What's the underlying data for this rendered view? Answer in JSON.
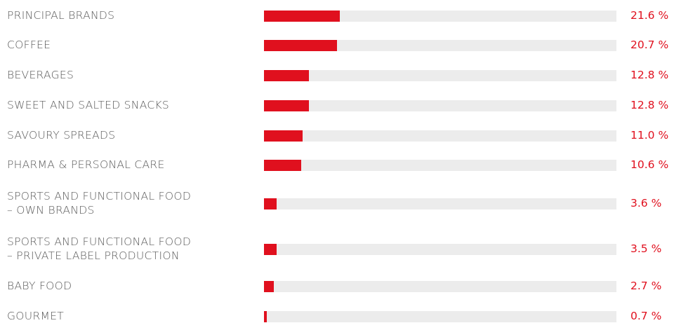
{
  "colors": {
    "accent": "#e0101e",
    "track": "#ececec",
    "label": "#5a5a5a"
  },
  "chart_data": {
    "type": "bar",
    "orientation": "horizontal",
    "xlim": [
      0,
      100
    ],
    "value_suffix": " %",
    "categories": [
      [
        "PRINCIPAL BRANDS"
      ],
      [
        "COFFEE"
      ],
      [
        "BEVERAGES"
      ],
      [
        "SWEET AND SALTED SNACKS"
      ],
      [
        "SAVOURY SPREADS"
      ],
      [
        "PHARMA & PERSONAL CARE"
      ],
      [
        "SPORTS AND FUNCTIONAL FOOD",
        "– OWN BRANDS"
      ],
      [
        "SPORTS AND FUNCTIONAL FOOD",
        "– PRIVATE LABEL PRODUCTION"
      ],
      [
        "BABY FOOD"
      ],
      [
        "GOURMET"
      ]
    ],
    "values": [
      21.6,
      20.7,
      12.8,
      12.8,
      11.0,
      10.6,
      3.6,
      3.5,
      2.7,
      0.7
    ],
    "value_labels": [
      "21.6 %",
      "20.7 %",
      "12.8 %",
      "12.8 %",
      "11.0 %",
      "10.6 %",
      "3.6 %",
      "3.5 %",
      "2.7 %",
      "0.7 %"
    ]
  }
}
